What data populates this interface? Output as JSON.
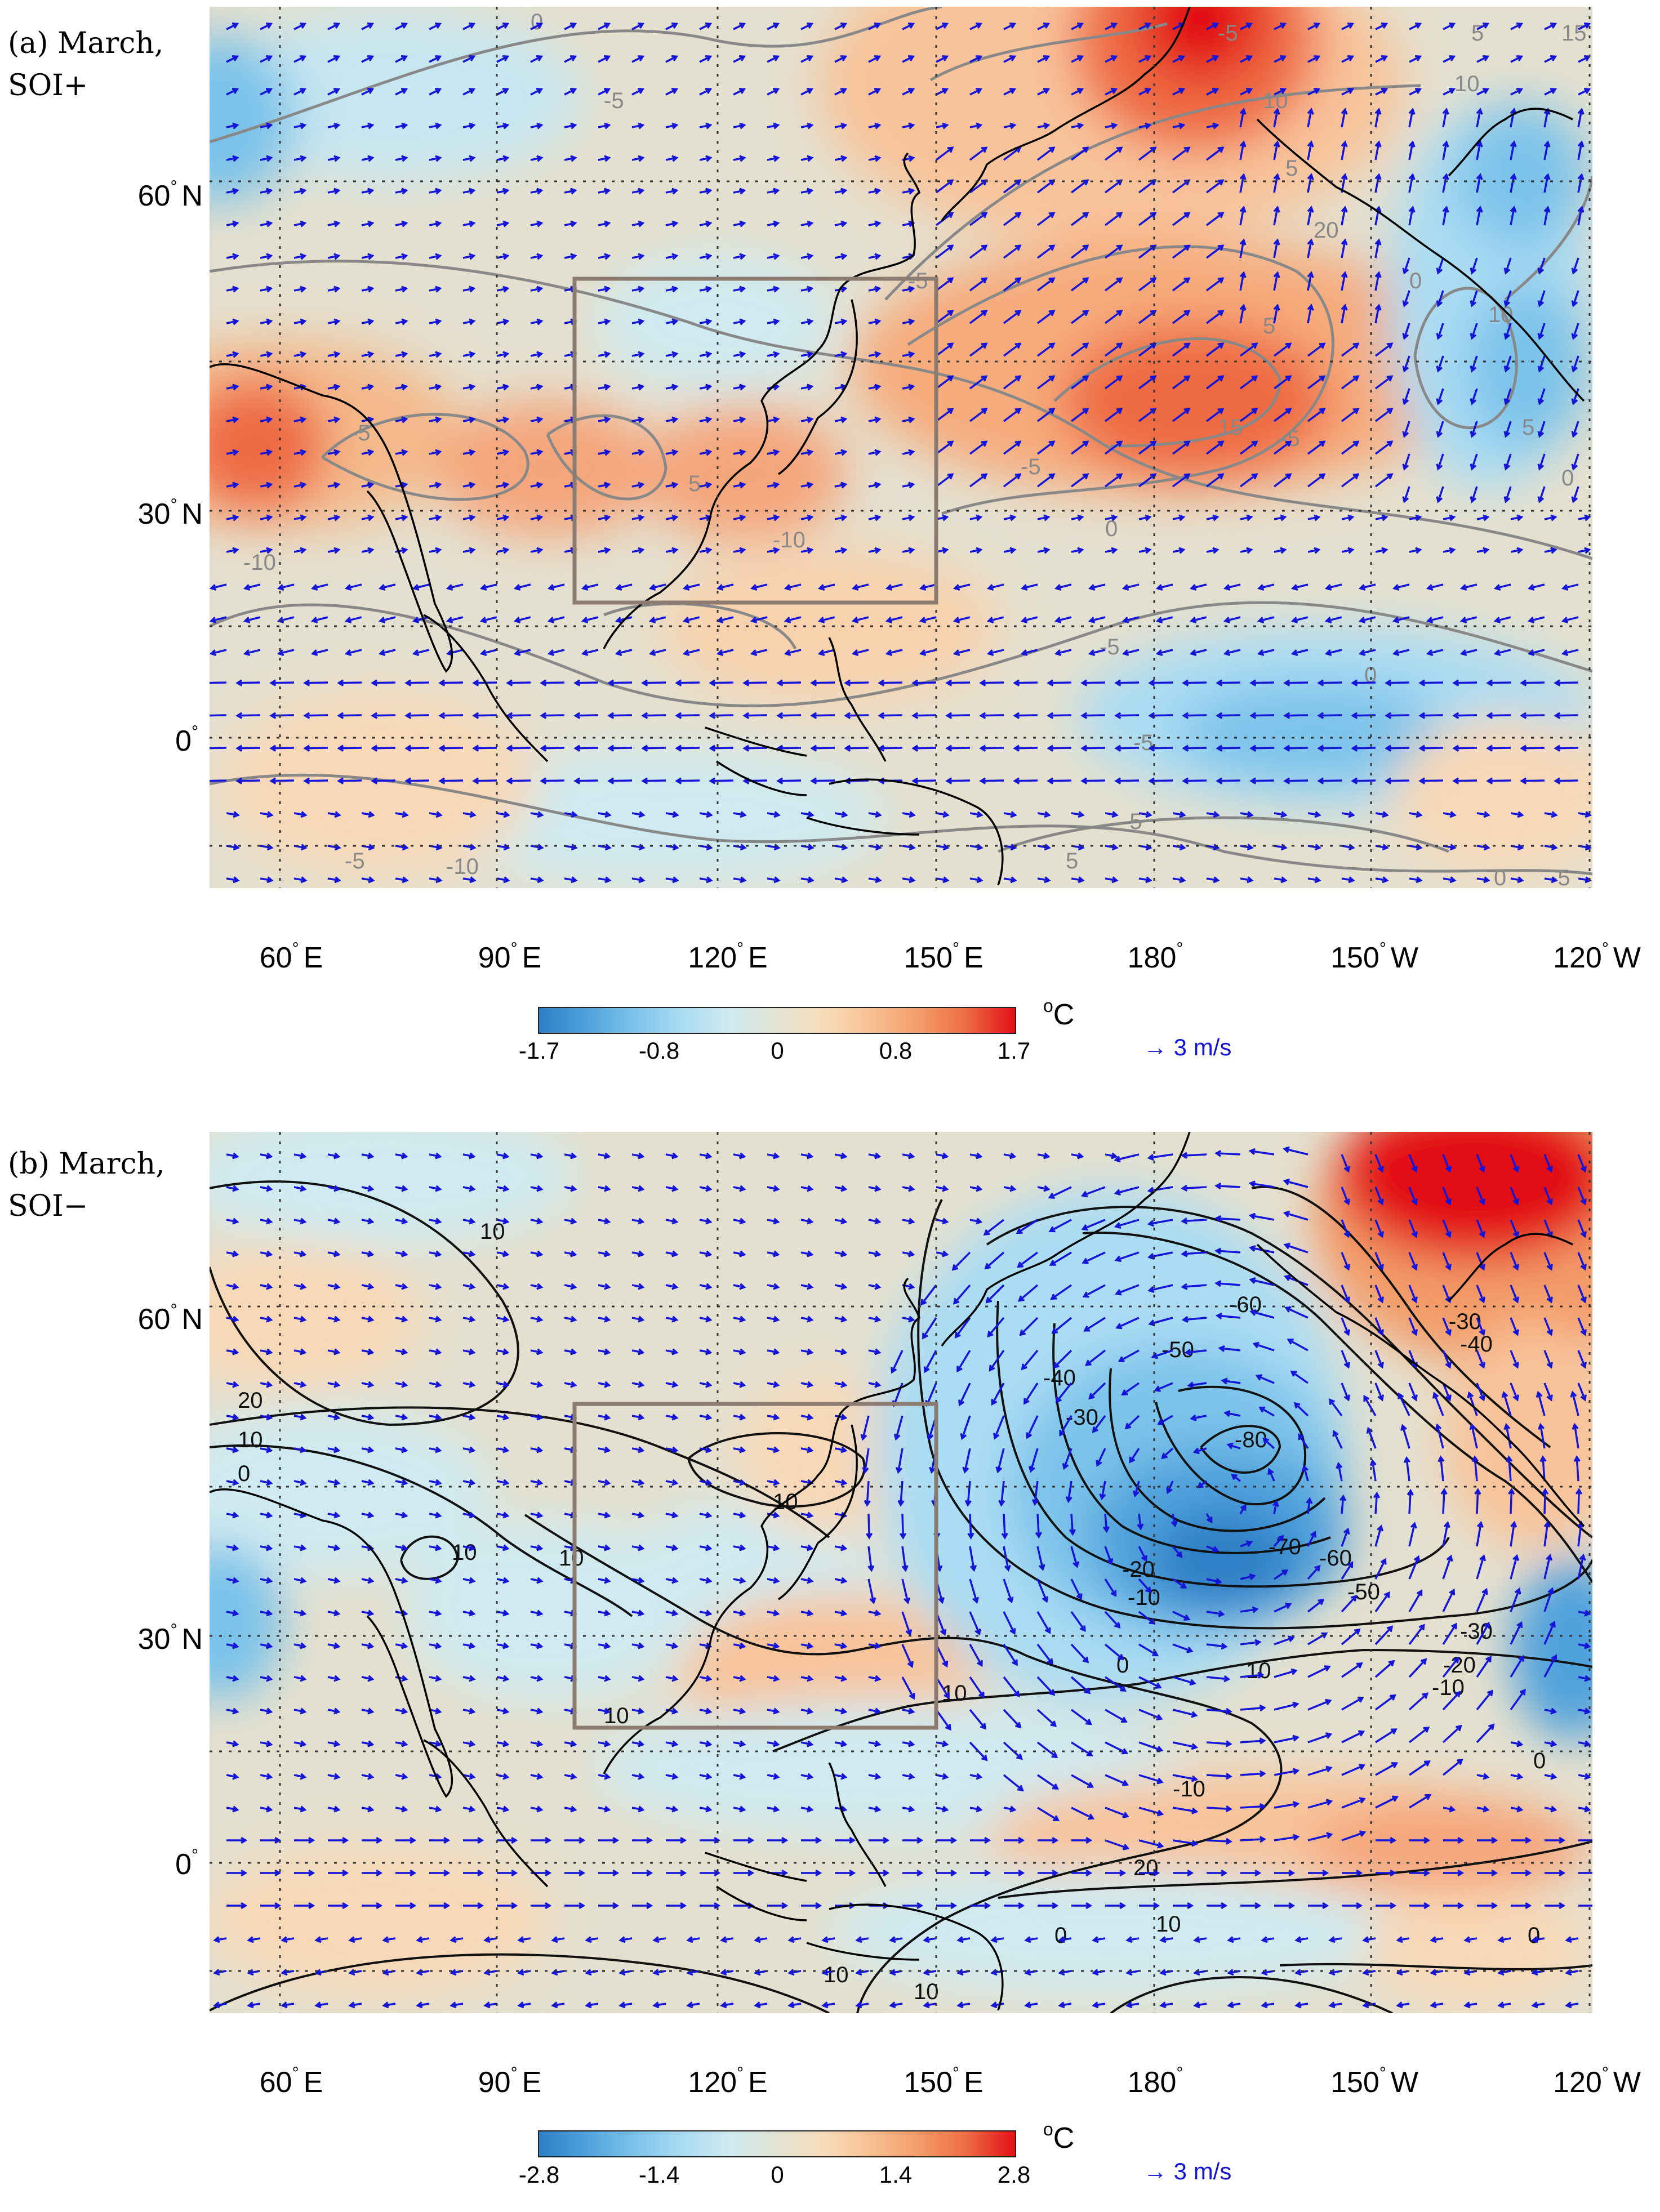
{
  "panels": [
    {
      "label_line1": "(a) March,",
      "label_line2": "SOI+",
      "colorbar_ticks": [
        "-1.7",
        "-0.8",
        "0",
        "0.8",
        "1.7"
      ],
      "contour_color": "#888888",
      "contour_labels": [
        "0",
        "-5",
        "-5",
        "5",
        "10",
        "15",
        "-5",
        "10",
        "5",
        "20",
        "15",
        "-5",
        "5",
        "0",
        "10",
        "5",
        "0",
        "-5",
        "0",
        "-5",
        "-5",
        "-5",
        "0",
        "-10",
        "-5",
        "5",
        "-10",
        "-5",
        "5",
        "0",
        "-5",
        "-10"
      ]
    },
    {
      "label_line1": "(b) March,",
      "label_line2": "SOI−",
      "colorbar_ticks": [
        "-2.8",
        "-1.4",
        "0",
        "1.4",
        "2.8"
      ],
      "contour_color": "#111111",
      "contour_labels": [
        "10",
        "20",
        "10",
        "0",
        "10",
        "10",
        "10",
        "10",
        "-40",
        "-50",
        "-60",
        "-30",
        "-80",
        "-70",
        "-60",
        "-50",
        "-30",
        "-40",
        "-20",
        "-10",
        "-30",
        "-20",
        "-10",
        "0",
        "10",
        "10",
        "0",
        "-10",
        "20",
        "0",
        "10",
        "0",
        "10",
        "10"
      ]
    }
  ],
  "axes": {
    "lat_labels": [
      "60",
      "N",
      "30",
      "N",
      "0",
      ""
    ],
    "lon_labels": [
      "60",
      "E",
      "90",
      "E",
      "120",
      "E",
      "150",
      "E",
      "180",
      "",
      "150",
      "W",
      "120",
      "W"
    ]
  },
  "colorbar_unit": {
    "base": "C",
    "super": "o"
  },
  "vector_key": "→ 3 m/s",
  "colors": {
    "land_outline": "#000000",
    "box": "#8c7b70",
    "vectors": "#1515d8",
    "grid": "#333333"
  }
}
